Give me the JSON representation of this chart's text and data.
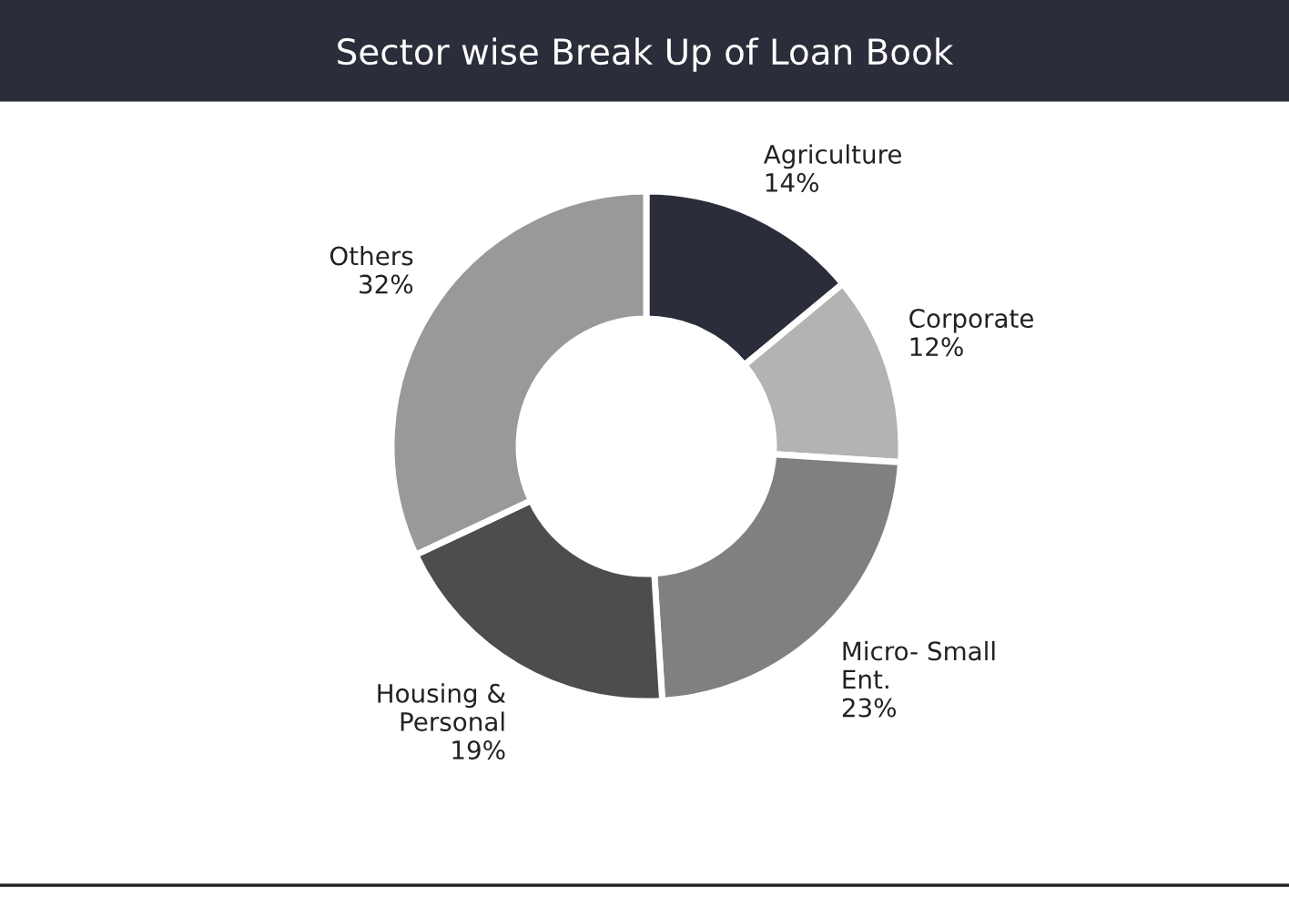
{
  "chart_data": {
    "type": "donut",
    "title": "Sector wise Break Up of Loan Book",
    "categories": [
      "Agriculture",
      "Corporate",
      "Micro- Small\nEnt.",
      "Housing &\nPersonal",
      "Others"
    ],
    "values": [
      14,
      12,
      23,
      19,
      32
    ],
    "value_labels": [
      "14%",
      "12%",
      "23%",
      "19%",
      "32%"
    ],
    "colors": [
      "#2b2d3a",
      "#b3b3b3",
      "#808080",
      "#4d4d4d",
      "#999999"
    ],
    "legend": false
  }
}
